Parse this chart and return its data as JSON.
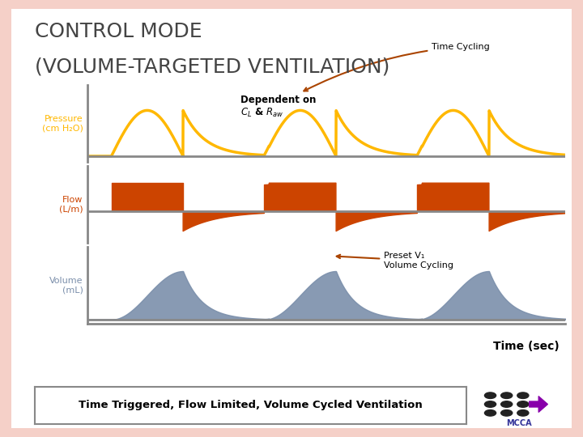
{
  "title_line1": "CONTROL MODE",
  "title_line2": "(VOLUME-TARGETED VENTILATION)",
  "background_color": "#F5D0C8",
  "panel_bg": "#FFFFFF",
  "outer_bg": "#FFFFFF",
  "pressure_color": "#FFB800",
  "flow_color": "#CC4400",
  "volume_color": "#7B8FAB",
  "axis_color": "#555555",
  "ylabel_pressure": "Pressure\n(cm H₂O)",
  "ylabel_flow": "Flow\n(L/m)",
  "ylabel_volume": "Volume\n(mL)",
  "xlabel": "Time (sec)",
  "annotation_time_cycling": "Time Cycling",
  "annotation_preset": "Preset V₁\nVolume Cycling",
  "bottom_text": "Time Triggered, Flow Limited, Volume Cycled Ventilation",
  "cycle_starts": [
    0.5,
    3.7,
    6.9
  ],
  "t_insp": 1.5,
  "t_exp": 1.8,
  "T": 10.0
}
